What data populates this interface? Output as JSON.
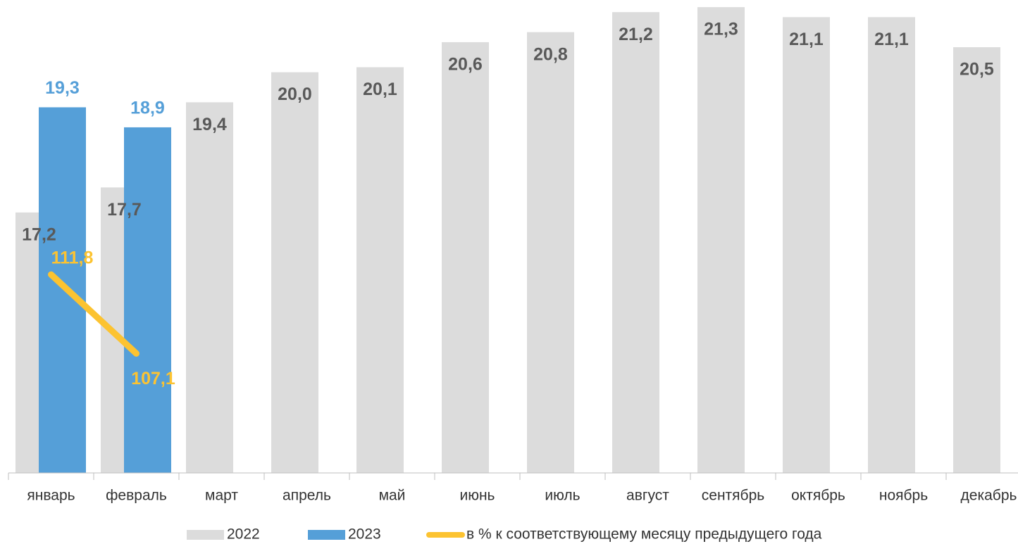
{
  "chart_data": {
    "type": "bar",
    "categories": [
      "январь",
      "февраль",
      "март",
      "апрель",
      "май",
      "июнь",
      "июль",
      "август",
      "сентябрь",
      "октябрь",
      "ноябрь",
      "декабрь"
    ],
    "series": [
      {
        "name": "2022",
        "color": "#dcdcdc",
        "label_color": "#595959",
        "values": [
          17.2,
          17.7,
          19.4,
          20.0,
          20.1,
          20.6,
          20.8,
          21.2,
          21.3,
          21.1,
          21.1,
          20.5
        ],
        "value_labels": [
          "17,2",
          "17,7",
          "19,4",
          "20,0",
          "20,1",
          "20,6",
          "20,8",
          "21,2",
          "21,3",
          "21,1",
          "21,1",
          "20,5"
        ]
      },
      {
        "name": "2023",
        "color": "#559fd8",
        "label_color": "#559fd8",
        "values": [
          19.3,
          18.9,
          null,
          null,
          null,
          null,
          null,
          null,
          null,
          null,
          null,
          null
        ],
        "value_labels": [
          "19,3",
          "18,9",
          null,
          null,
          null,
          null,
          null,
          null,
          null,
          null,
          null,
          null
        ]
      },
      {
        "name": "в % к соответствующему месяцу предыдущего года",
        "type": "line",
        "axis": "y2",
        "color": "#fcc331",
        "label_color": "#fcc331",
        "values": [
          111.8,
          107.1,
          null,
          null,
          null,
          null,
          null,
          null,
          null,
          null,
          null,
          null
        ],
        "value_labels": [
          "111,8",
          "107,1",
          null,
          null,
          null,
          null,
          null,
          null,
          null,
          null,
          null,
          null
        ]
      }
    ],
    "ylim": [
      12,
      21.4
    ],
    "y2lim": [
      100,
      128
    ],
    "grid": false,
    "legend": "bottom"
  }
}
